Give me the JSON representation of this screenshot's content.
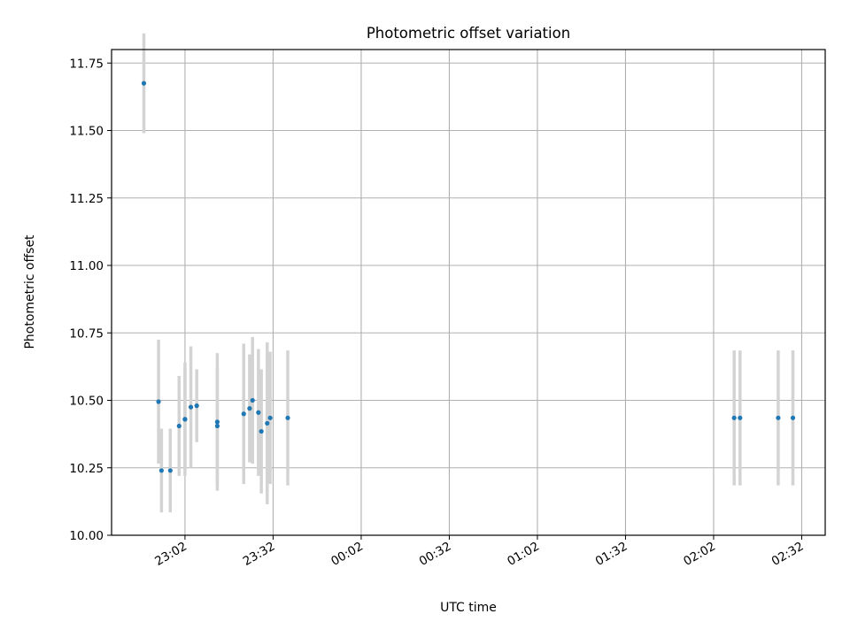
{
  "chart_data": {
    "type": "scatter",
    "title": "Photometric offset variation",
    "xlabel": "UTC time",
    "ylabel": "Photometric offset",
    "xlim": [
      "22:37",
      "02:40"
    ],
    "ylim": [
      10.0,
      11.8
    ],
    "grid": true,
    "x_ticks": [
      "23:02",
      "23:32",
      "00:02",
      "00:32",
      "01:02",
      "01:32",
      "02:02",
      "02:32"
    ],
    "y_ticks": [
      "10.00",
      "10.25",
      "10.50",
      "10.75",
      "11.00",
      "11.25",
      "11.50",
      "11.75"
    ],
    "series": [
      {
        "point_color": "#1f77b4",
        "errorbar_color": "#d3d3d3",
        "points": [
          {
            "x": "22:48",
            "y": 11.675,
            "err": 0.185
          },
          {
            "x": "22:53",
            "y": 10.495,
            "err": 0.23
          },
          {
            "x": "22:54",
            "y": 10.24,
            "err": 0.155
          },
          {
            "x": "22:57",
            "y": 10.24,
            "err": 0.155
          },
          {
            "x": "23:00",
            "y": 10.405,
            "err": 0.185
          },
          {
            "x": "23:02",
            "y": 10.43,
            "err": 0.21
          },
          {
            "x": "23:02",
            "y": 10.43,
            "err": 0.19
          },
          {
            "x": "23:04",
            "y": 10.475,
            "err": 0.225
          },
          {
            "x": "23:06",
            "y": 10.48,
            "err": 0.135
          },
          {
            "x": "23:13",
            "y": 10.405,
            "err": 0.215
          },
          {
            "x": "23:13",
            "y": 10.42,
            "err": 0.255
          },
          {
            "x": "23:22",
            "y": 10.45,
            "err": 0.26
          },
          {
            "x": "23:24",
            "y": 10.47,
            "err": 0.2
          },
          {
            "x": "23:25",
            "y": 10.5,
            "err": 0.235
          },
          {
            "x": "23:27",
            "y": 10.455,
            "err": 0.235
          },
          {
            "x": "23:28",
            "y": 10.385,
            "err": 0.23
          },
          {
            "x": "23:30",
            "y": 10.415,
            "err": 0.3
          },
          {
            "x": "23:31",
            "y": 10.435,
            "err": 0.245
          },
          {
            "x": "23:37",
            "y": 10.435,
            "err": 0.25
          },
          {
            "x": "02:09",
            "y": 10.435,
            "err": 0.25
          },
          {
            "x": "02:11",
            "y": 10.435,
            "err": 0.25
          },
          {
            "x": "02:24",
            "y": 10.435,
            "err": 0.25
          },
          {
            "x": "02:29",
            "y": 10.435,
            "err": 0.25
          }
        ]
      }
    ]
  }
}
